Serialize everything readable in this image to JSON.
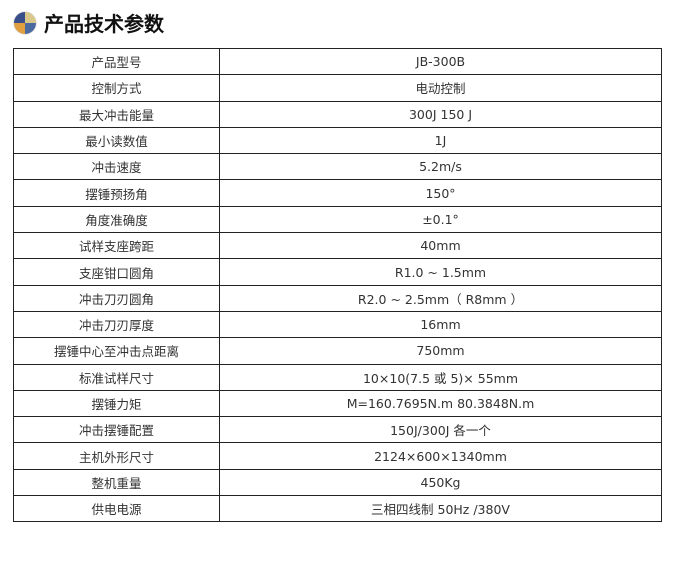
{
  "title": "产品技术参数",
  "logo_icon": "globe-quadrant-icon",
  "rows": [
    [
      "产品型号",
      "JB-300B"
    ],
    [
      "控制方式",
      "电动控制"
    ],
    [
      "最大冲击能量",
      "300J 150 J"
    ],
    [
      "最小读数值",
      "1J"
    ],
    [
      "冲击速度",
      "5.2m/s"
    ],
    [
      "摆锤预扬角",
      "150°"
    ],
    [
      "角度准确度",
      "±0.1°"
    ],
    [
      "试样支座跨距",
      "40mm"
    ],
    [
      "支座钳口圆角",
      "R1.0 ~ 1.5mm"
    ],
    [
      "冲击刀刃圆角",
      "R2.0 ~ 2.5mm（  R8mm ）"
    ],
    [
      "冲击刀刃厚度",
      "16mm"
    ],
    [
      "摆锤中心至冲击点距离",
      "750mm"
    ],
    [
      "标准试样尺寸",
      "10×10(7.5 或 5)× 55mm"
    ],
    [
      "摆锤力矩",
      "M=160.7695N.m     80.3848N.m"
    ],
    [
      "冲击摆锤配置",
      "150J/300J 各一个"
    ],
    [
      "主机外形尺寸",
      "2124×600×1340mm"
    ],
    [
      "整机重量",
      "450Kg"
    ],
    [
      "供电电源",
      "三相四线制 50Hz /380V"
    ]
  ]
}
